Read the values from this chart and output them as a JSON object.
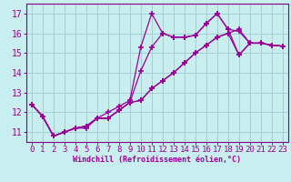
{
  "xlabel": "Windchill (Refroidissement éolien,°C)",
  "background_color": "#c8eef0",
  "grid_color": "#a0d0d8",
  "line_color": "#990099",
  "spine_color": "#880088",
  "x_data": [
    0,
    1,
    2,
    3,
    4,
    5,
    6,
    7,
    8,
    9,
    10,
    11,
    12,
    13,
    14,
    15,
    16,
    17,
    18,
    19,
    20,
    21,
    22,
    23
  ],
  "series": [
    [
      12.4,
      11.8,
      10.8,
      11.0,
      11.2,
      11.2,
      11.7,
      12.0,
      12.3,
      12.6,
      15.3,
      17.0,
      16.0,
      15.8,
      15.8,
      15.9,
      16.5,
      17.0,
      16.2,
      16.1,
      15.5,
      15.5,
      15.4,
      15.35
    ],
    [
      12.4,
      11.8,
      10.8,
      11.0,
      11.2,
      11.3,
      11.7,
      11.7,
      12.1,
      12.5,
      14.1,
      15.3,
      16.0,
      15.8,
      15.8,
      15.9,
      16.5,
      17.0,
      16.2,
      14.9,
      15.5,
      15.5,
      15.4,
      15.35
    ],
    [
      12.4,
      11.8,
      10.8,
      11.0,
      11.2,
      11.3,
      11.7,
      11.7,
      12.1,
      12.5,
      12.6,
      13.2,
      13.6,
      14.0,
      14.5,
      15.0,
      15.4,
      15.8,
      16.0,
      16.2,
      15.5,
      15.5,
      15.4,
      15.35
    ],
    [
      12.4,
      11.8,
      10.8,
      11.0,
      11.2,
      11.3,
      11.7,
      11.7,
      12.1,
      12.5,
      12.6,
      13.2,
      13.6,
      14.0,
      14.5,
      15.0,
      15.4,
      15.8,
      16.0,
      14.9,
      15.5,
      15.5,
      15.4,
      15.35
    ]
  ],
  "ylim": [
    10.5,
    17.5
  ],
  "xlim": [
    -0.5,
    23.5
  ],
  "yticks": [
    11,
    12,
    13,
    14,
    15,
    16,
    17
  ],
  "xticks": [
    0,
    1,
    2,
    3,
    4,
    5,
    6,
    7,
    8,
    9,
    10,
    11,
    12,
    13,
    14,
    15,
    16,
    17,
    18,
    19,
    20,
    21,
    22,
    23
  ],
  "marker": "+",
  "markersize": 4,
  "markeredgewidth": 1.2,
  "linewidth": 0.9,
  "tick_fontsize": 6.5,
  "xlabel_fontsize": 6.0
}
